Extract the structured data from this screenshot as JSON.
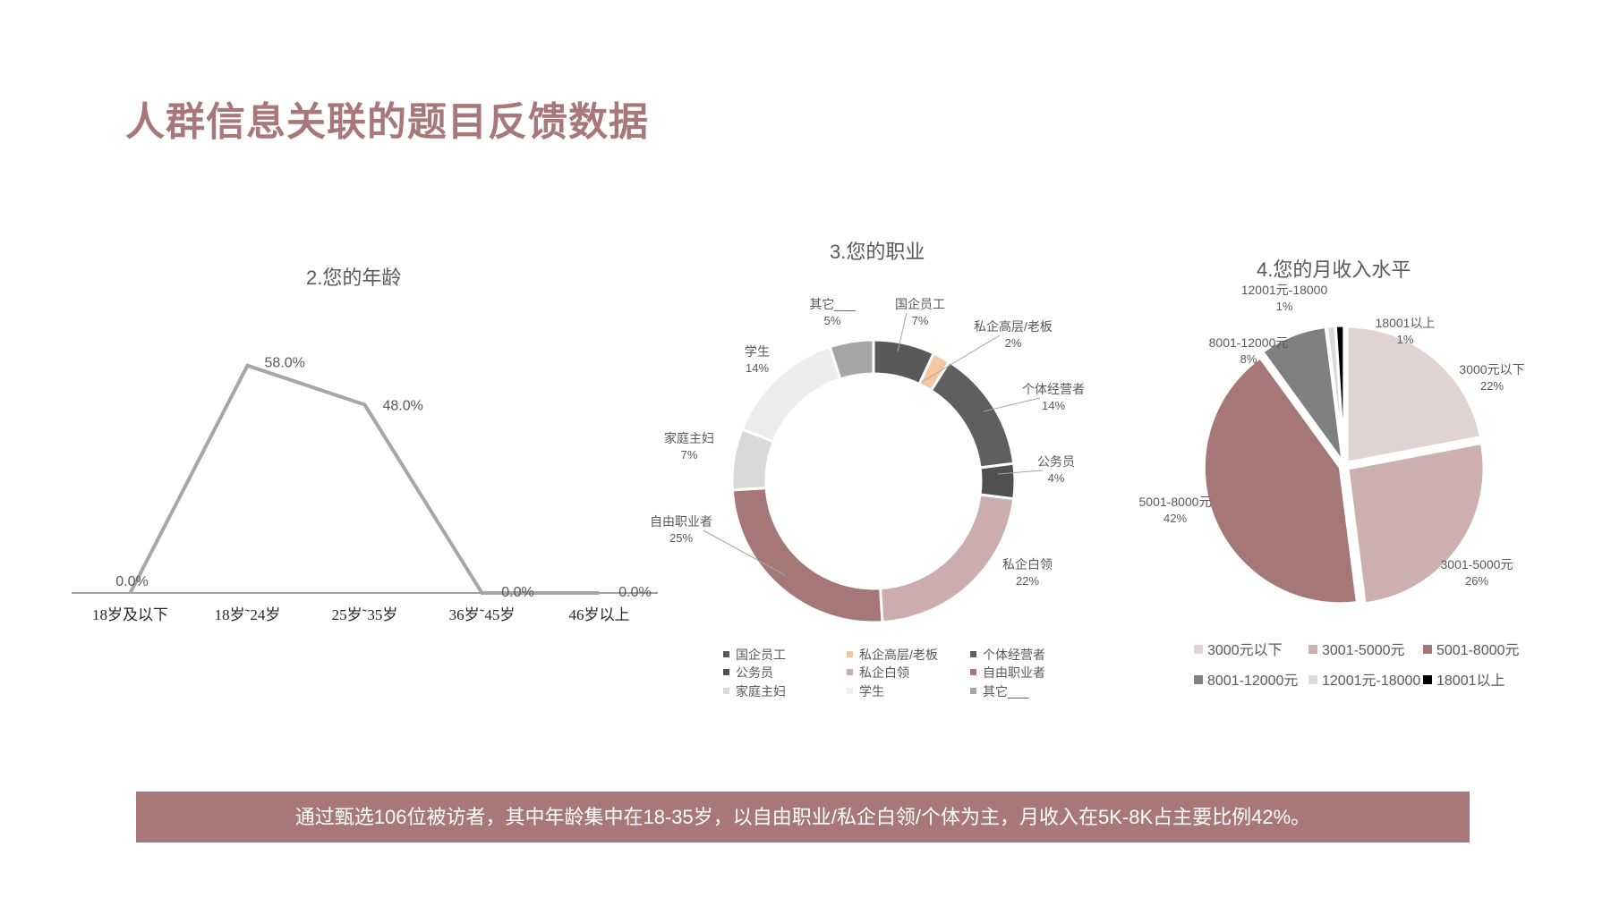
{
  "title": "人群信息关联的题目反馈数据",
  "summary": "通过甄选106位被访者，其中年龄集中在18-35岁，以自由职业/私企白领/个体为主，月收入在5K-8K占主要比例42%。",
  "colors": {
    "accent": "#a87878",
    "summary_bar": "#a87878",
    "line": "#a6a6a6",
    "axis": "#808080",
    "text": "#595959"
  },
  "chart_data": [
    {
      "type": "line",
      "title": "2.您的年龄",
      "categories": [
        "18岁及以下",
        "18岁~24岁",
        "25岁~35岁",
        "36岁~45岁",
        "46岁以上"
      ],
      "category_labels": [
        "18岁及以下",
        "18岁˜24岁",
        "25岁˜35岁",
        "36岁˜45岁",
        "46岁以上"
      ],
      "values": [
        0.0,
        58.0,
        48.0,
        0.0,
        0.0
      ],
      "data_labels": [
        "0.0%",
        "58.0%",
        "48.0%",
        "0.0%",
        "0.0%"
      ],
      "ylim": [
        0,
        65
      ],
      "grid": false,
      "legend": "none"
    },
    {
      "type": "pie",
      "variant": "donut",
      "title": "3.您的职业",
      "slices": [
        {
          "name": "国企员工",
          "value": 7,
          "label": "7%",
          "color": "#595959"
        },
        {
          "name": "私企高层/老板",
          "value": 2,
          "label": "2%",
          "color": "#f4c7a1"
        },
        {
          "name": "个体经营者",
          "value": 14,
          "label": "14%",
          "color": "#5f5f5f"
        },
        {
          "name": "公务员",
          "value": 4,
          "label": "4%",
          "color": "#505050"
        },
        {
          "name": "私企白领",
          "value": 22,
          "label": "22%",
          "color": "#ccadad"
        },
        {
          "name": "自由职业者",
          "value": 25,
          "label": "25%",
          "color": "#a67777"
        },
        {
          "name": "家庭主妇",
          "value": 7,
          "label": "7%",
          "color": "#d9d9d9"
        },
        {
          "name": "学生",
          "value": 14,
          "label": "14%",
          "color": "#ededed"
        },
        {
          "name": "其它___",
          "value": 5,
          "label": "5%",
          "color": "#a6a6a6"
        }
      ],
      "legend": "bottom"
    },
    {
      "type": "pie",
      "title": "4.您的月收入水平",
      "slices": [
        {
          "name": "3000元以下",
          "value": 22,
          "label": "22%",
          "color": "#e2d3d3"
        },
        {
          "name": "3001-5000元",
          "value": 26,
          "label": "26%",
          "color": "#ccafaf"
        },
        {
          "name": "5001-8000元",
          "value": 42,
          "label": "42%",
          "color": "#a67777"
        },
        {
          "name": "8001-12000元",
          "value": 8,
          "label": "8%",
          "color": "#808080"
        },
        {
          "name": "12001元-18000",
          "value": 1,
          "label": "1%",
          "color": "#d9d9d9"
        },
        {
          "name": "18001以上",
          "value": 1,
          "label": "1%",
          "color": "#000000"
        }
      ],
      "legend": "bottom"
    }
  ]
}
